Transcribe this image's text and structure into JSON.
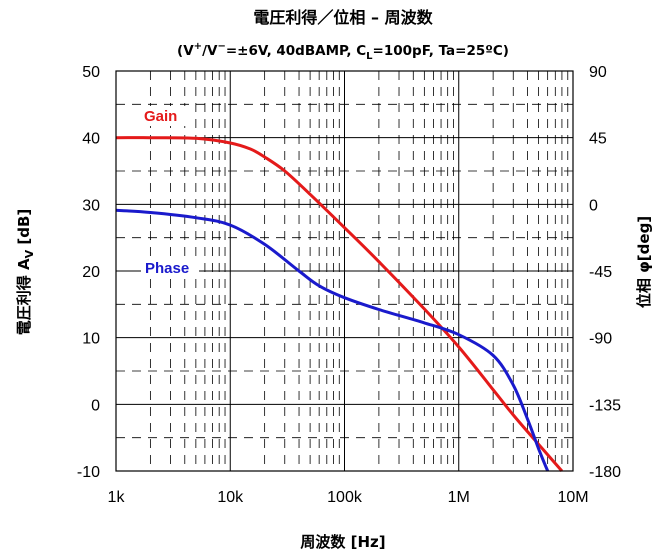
{
  "chart_data": {
    "type": "line",
    "title": "電圧利得／位相 – 周波数",
    "subtitle": {
      "part1": "(V",
      "sup1": "+",
      "part2": "/V",
      "sup2": "−",
      "part3": "=±6V, 40dBAMP, C",
      "sub1": "L",
      "part4": "=100pF, Ta=25ºC)"
    },
    "xlabel": "周波数 [Hz]",
    "ylabel_left": {
      "main": "電圧利得 A",
      "sub": "V",
      "unit": " [dB]"
    },
    "ylabel_right": "位相 φ[deg]",
    "x_scale": "log",
    "xlim": [
      1000,
      10000000
    ],
    "ylim_left": [
      -10,
      50
    ],
    "ylim_right": [
      -180,
      90
    ],
    "x_ticks": [
      {
        "value": 1000,
        "label": "1k"
      },
      {
        "value": 10000,
        "label": "10k"
      },
      {
        "value": 100000,
        "label": "100k"
      },
      {
        "value": 1000000,
        "label": "1M"
      },
      {
        "value": 10000000,
        "label": "10M"
      }
    ],
    "y_ticks_left": [
      -10,
      0,
      10,
      20,
      30,
      40,
      50
    ],
    "y_ticks_right": [
      -180,
      -135,
      -90,
      -45,
      0,
      45,
      90
    ],
    "grid": true,
    "series": [
      {
        "name": "Gain",
        "axis": "left",
        "color": "#e41a1a",
        "x": [
          1000,
          2000,
          5000,
          10000,
          15000,
          20000,
          30000,
          50000,
          100000,
          200000,
          500000,
          1000000,
          2000000,
          3000000,
          5000000,
          8000000
        ],
        "y": [
          40,
          40,
          39.9,
          39.2,
          38.3,
          37.1,
          35.0,
          31.5,
          26.5,
          21.4,
          14.3,
          8.6,
          2.2,
          -1.6,
          -6.0,
          -10.0
        ]
      },
      {
        "name": "Phase",
        "axis": "right",
        "color": "#1a1acc",
        "x": [
          1000,
          2000,
          5000,
          10000,
          20000,
          40000,
          60000,
          100000,
          200000,
          500000,
          1000000,
          2000000,
          3000000,
          4000000,
          5000000,
          6000000
        ],
        "y": [
          -4,
          -5.5,
          -9,
          -14,
          -27,
          -45,
          -55,
          -63,
          -71,
          -80,
          -88,
          -102,
          -122,
          -145,
          -165,
          -180
        ]
      }
    ]
  }
}
